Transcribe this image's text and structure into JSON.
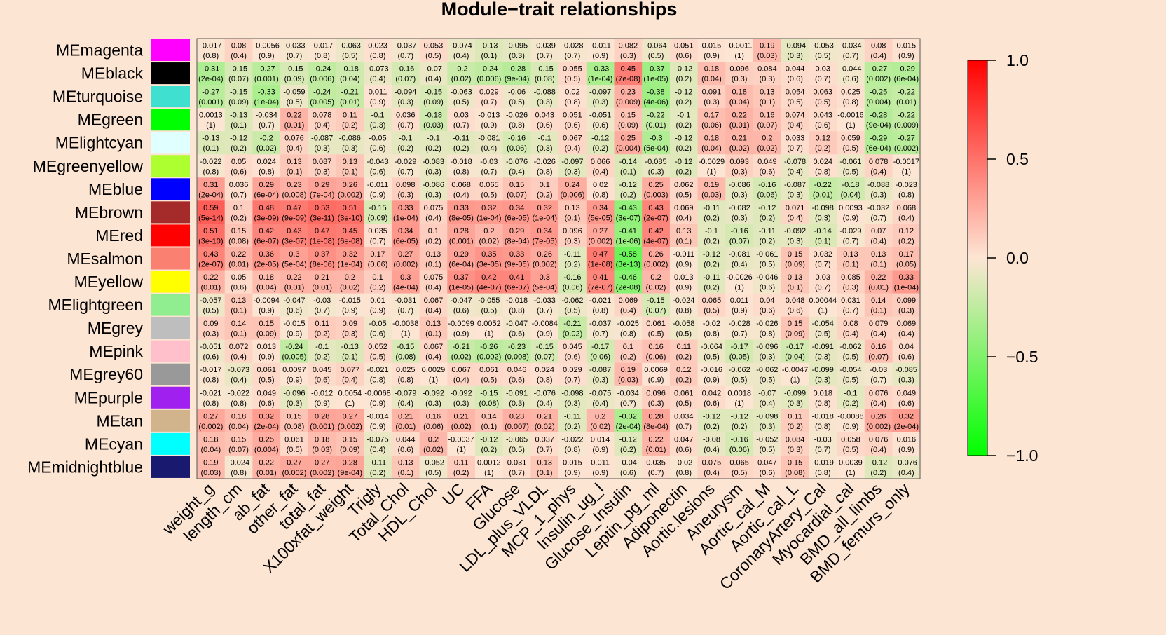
{
  "chart_data": {
    "type": "heatmap",
    "title": "Module−trait relationships",
    "rows": [
      "MEmagenta",
      "MEblack",
      "MEturquoise",
      "MEgreen",
      "MElightcyan",
      "MEgreenyellow",
      "MEblue",
      "MEbrown",
      "MEred",
      "MEsalmon",
      "MEyellow",
      "MElightgreen",
      "MEgrey",
      "MEpink",
      "MEgrey60",
      "MEpurple",
      "MEtan",
      "MEcyan",
      "MEmidnightblue"
    ],
    "row_colors": [
      "#ff00ff",
      "#000000",
      "#40e0d0",
      "#00ff00",
      "#e0ffff",
      "#adff2f",
      "#0000ff",
      "#a52a2a",
      "#ff0000",
      "#fa8072",
      "#ffff00",
      "#90ee90",
      "#bebebe",
      "#ffc0cb",
      "#999999",
      "#a020f0",
      "#d2b48c",
      "#00ffff",
      "#191970"
    ],
    "columns": [
      "weight_g",
      "length_cm",
      "ab_fat",
      "other_fat",
      "total_fat",
      "X100xfat_weight",
      "Trigly",
      "Total_Chol",
      "HDL_Chol",
      "UC",
      "FFA",
      "Glucose",
      "LDL_plus_VLDL",
      "MCP_1_phys",
      "Insulin_ug_l",
      "Glucose_Insulin",
      "Leptin_pg_ml",
      "Adiponectin",
      "Aortic.lesions",
      "Aneurysm",
      "Aortic_cal_M",
      "Aortic_cal_L",
      "CoronaryArtery_Cal",
      "Myocardial_cal",
      "BMD_all_limbs",
      "BMD_femurs_only"
    ],
    "correlations": [
      [
        "-0.017",
        "0.08",
        "-0.0056",
        "-0.033",
        "-0.017",
        "-0.063",
        "0.023",
        "-0.037",
        "0.053",
        "-0.074",
        "-0.13",
        "-0.095",
        "-0.039",
        "-0.028",
        "-0.011",
        "0.082",
        "-0.064",
        "0.051",
        "0.015",
        "-0.0011",
        "0.19",
        "-0.094",
        "-0.053",
        "-0.034",
        "0.08",
        "0.015"
      ],
      [
        "-0.31",
        "-0.15",
        "-0.27",
        "-0.15",
        "-0.24",
        "-0.18",
        "-0.073",
        "-0.16",
        "-0.07",
        "-0.2",
        "-0.24",
        "-0.28",
        "-0.15",
        "0.055",
        "-0.33",
        "0.45",
        "-0.37",
        "-0.12",
        "0.18",
        "0.096",
        "0.084",
        "0.044",
        "0.03",
        "-0.044",
        "-0.27",
        "-0.29"
      ],
      [
        "-0.27",
        "-0.15",
        "-0.33",
        "-0.059",
        "-0.24",
        "-0.21",
        "0.011",
        "-0.094",
        "-0.15",
        "-0.063",
        "0.029",
        "-0.06",
        "-0.088",
        "0.02",
        "-0.097",
        "0.23",
        "-0.38",
        "-0.12",
        "0.091",
        "0.18",
        "0.13",
        "0.054",
        "0.063",
        "0.025",
        "-0.25",
        "-0.22"
      ],
      [
        "0.0013",
        "-0.13",
        "-0.034",
        "0.22",
        "0.078",
        "0.11",
        "-0.1",
        "0.036",
        "-0.18",
        "0.03",
        "-0.013",
        "-0.026",
        "0.043",
        "0.051",
        "-0.051",
        "0.15",
        "-0.22",
        "-0.1",
        "0.17",
        "0.22",
        "0.16",
        "0.074",
        "0.043",
        "-0.0016",
        "-0.28",
        "-0.22"
      ],
      [
        "-0.13",
        "-0.12",
        "-0.2",
        "0.076",
        "-0.087",
        "-0.086",
        "-0.05",
        "-0.1",
        "-0.1",
        "-0.11",
        "-0.081",
        "-0.16",
        "-0.1",
        "0.067",
        "-0.12",
        "0.25",
        "-0.3",
        "-0.12",
        "0.18",
        "0.21",
        "0.2",
        "0.033",
        "0.12",
        "0.059",
        "-0.29",
        "-0.27"
      ],
      [
        "-0.022",
        "0.05",
        "0.024",
        "0.13",
        "0.087",
        "0.13",
        "-0.043",
        "-0.029",
        "-0.083",
        "-0.018",
        "-0.03",
        "-0.076",
        "-0.026",
        "-0.097",
        "0.066",
        "-0.14",
        "-0.085",
        "-0.12",
        "-0.0029",
        "0.093",
        "0.049",
        "-0.078",
        "0.024",
        "-0.061",
        "0.078",
        "-0.0017"
      ],
      [
        "0.31",
        "0.036",
        "0.29",
        "0.23",
        "0.29",
        "0.26",
        "-0.011",
        "0.098",
        "-0.086",
        "0.068",
        "0.065",
        "0.15",
        "0.1",
        "0.24",
        "0.02",
        "-0.12",
        "0.25",
        "0.062",
        "0.19",
        "-0.086",
        "-0.16",
        "-0.087",
        "-0.22",
        "-0.18",
        "-0.088",
        "-0.023"
      ],
      [
        "0.59",
        "0.1",
        "0.48",
        "0.47",
        "0.53",
        "0.51",
        "-0.15",
        "0.33",
        "0.075",
        "0.33",
        "0.32",
        "0.34",
        "0.32",
        "0.13",
        "0.34",
        "-0.43",
        "0.43",
        "0.069",
        "-0.11",
        "-0.082",
        "-0.12",
        "0.071",
        "-0.098",
        "0.0093",
        "-0.032",
        "0.068"
      ],
      [
        "0.51",
        "0.15",
        "0.42",
        "0.43",
        "0.47",
        "0.45",
        "0.035",
        "0.34",
        "0.1",
        "0.28",
        "0.2",
        "0.29",
        "0.34",
        "0.096",
        "0.27",
        "-0.41",
        "0.42",
        "0.13",
        "-0.1",
        "-0.16",
        "-0.11",
        "-0.092",
        "-0.14",
        "-0.029",
        "0.07",
        "0.12"
      ],
      [
        "0.43",
        "0.22",
        "0.36",
        "0.3",
        "0.37",
        "0.32",
        "0.17",
        "0.27",
        "0.13",
        "0.29",
        "0.35",
        "0.33",
        "0.26",
        "-0.11",
        "0.47",
        "-0.58",
        "0.26",
        "-0.011",
        "-0.12",
        "-0.081",
        "-0.061",
        "0.15",
        "0.032",
        "0.13",
        "0.13",
        "0.17"
      ],
      [
        "0.22",
        "0.05",
        "0.18",
        "0.22",
        "0.21",
        "0.2",
        "0.1",
        "0.3",
        "0.075",
        "0.37",
        "0.42",
        "0.41",
        "0.3",
        "-0.16",
        "0.41",
        "-0.46",
        "0.2",
        "0.013",
        "-0.11",
        "-0.0026",
        "-0.046",
        "0.13",
        "0.03",
        "0.085",
        "0.22",
        "0.33"
      ],
      [
        "-0.057",
        "0.13",
        "-0.0094",
        "-0.047",
        "-0.03",
        "-0.015",
        "0.01",
        "-0.031",
        "0.067",
        "-0.047",
        "-0.055",
        "-0.018",
        "-0.033",
        "-0.062",
        "-0.021",
        "0.069",
        "-0.15",
        "-0.024",
        "0.065",
        "0.011",
        "0.04",
        "0.048",
        "0.00044",
        "0.031",
        "0.14",
        "0.099"
      ],
      [
        "0.09",
        "0.14",
        "0.15",
        "-0.015",
        "0.11",
        "0.09",
        "-0.05",
        "-0.0038",
        "0.13",
        "-0.0099",
        "0.0052",
        "-0.047",
        "-0.0084",
        "-0.21",
        "-0.037",
        "-0.025",
        "0.061",
        "-0.058",
        "-0.02",
        "-0.028",
        "-0.026",
        "0.15",
        "-0.054",
        "0.08",
        "0.079",
        "0.069"
      ],
      [
        "-0.051",
        "0.072",
        "0.013",
        "-0.24",
        "-0.1",
        "-0.13",
        "0.052",
        "-0.15",
        "0.067",
        "-0.21",
        "-0.26",
        "-0.23",
        "-0.15",
        "0.045",
        "-0.17",
        "0.1",
        "0.16",
        "0.11",
        "-0.064",
        "-0.17",
        "-0.096",
        "-0.17",
        "-0.091",
        "-0.062",
        "0.16",
        "0.04"
      ],
      [
        "-0.017",
        "-0.073",
        "0.061",
        "0.0097",
        "0.045",
        "0.077",
        "-0.021",
        "0.025",
        "0.0029",
        "0.067",
        "0.061",
        "0.046",
        "0.024",
        "0.029",
        "-0.087",
        "0.19",
        "0.0069",
        "0.12",
        "-0.016",
        "-0.062",
        "-0.062",
        "-0.0047",
        "-0.099",
        "-0.054",
        "-0.03",
        "-0.085"
      ],
      [
        "-0.021",
        "-0.022",
        "0.049",
        "-0.096",
        "-0.012",
        "0.0054",
        "-0.0068",
        "-0.079",
        "-0.092",
        "-0.092",
        "-0.15",
        "-0.091",
        "-0.076",
        "-0.098",
        "-0.075",
        "-0.034",
        "0.096",
        "0.061",
        "0.042",
        "0.0018",
        "-0.07",
        "-0.099",
        "0.018",
        "-0.1",
        "0.076",
        "0.049"
      ],
      [
        "0.27",
        "0.18",
        "0.32",
        "0.15",
        "0.28",
        "0.27",
        "-0.014",
        "0.21",
        "0.16",
        "0.21",
        "0.14",
        "0.23",
        "0.21",
        "-0.11",
        "0.2",
        "-0.32",
        "0.28",
        "0.034",
        "-0.12",
        "-0.12",
        "-0.098",
        "0.11",
        "-0.018",
        "-0.0088",
        "0.26",
        "0.32"
      ],
      [
        "0.18",
        "0.15",
        "0.25",
        "0.061",
        "0.18",
        "0.15",
        "-0.075",
        "0.044",
        "0.2",
        "-0.0037",
        "-0.12",
        "-0.065",
        "0.037",
        "-0.022",
        "0.014",
        "-0.12",
        "0.22",
        "0.047",
        "-0.08",
        "-0.16",
        "-0.052",
        "0.084",
        "-0.03",
        "0.058",
        "0.076",
        "0.016"
      ],
      [
        "0.19",
        "-0.024",
        "0.22",
        "0.27",
        "0.27",
        "0.28",
        "-0.11",
        "0.13",
        "-0.052",
        "0.11",
        "0.0012",
        "0.031",
        "0.13",
        "0.015",
        "0.011",
        "-0.04",
        "0.035",
        "-0.02",
        "0.075",
        "0.065",
        "0.047",
        "0.15",
        "-0.019",
        "0.0039",
        "-0.12",
        "-0.076"
      ]
    ],
    "pvalues": [
      [
        "(0.8)",
        "(0.4)",
        "(0.9)",
        "(0.7)",
        "(0.8)",
        "(0.5)",
        "(0.8)",
        "(0.7)",
        "(0.5)",
        "(0.4)",
        "(0.1)",
        "(0.3)",
        "(0.7)",
        "(0.7)",
        "(0.9)",
        "(0.3)",
        "(0.5)",
        "(0.6)",
        "(0.9)",
        "(1)",
        "(0.03)",
        "(0.3)",
        "(0.5)",
        "(0.7)",
        "(0.4)",
        "(0.9)"
      ],
      [
        "(2e-04)",
        "(0.07)",
        "(0.001)",
        "(0.09)",
        "(0.006)",
        "(0.04)",
        "(0.4)",
        "(0.07)",
        "(0.4)",
        "(0.02)",
        "(0.006)",
        "(9e-04)",
        "(0.08)",
        "(0.5)",
        "(1e-04)",
        "(7e-08)",
        "(1e-05)",
        "(0.2)",
        "(0.04)",
        "(0.3)",
        "(0.3)",
        "(0.6)",
        "(0.7)",
        "(0.6)",
        "(0.002)",
        "(6e-04)"
      ],
      [
        "(0.001)",
        "(0.09)",
        "(1e-04)",
        "(0.5)",
        "(0.005)",
        "(0.01)",
        "(0.9)",
        "(0.3)",
        "(0.09)",
        "(0.5)",
        "(0.7)",
        "(0.5)",
        "(0.3)",
        "(0.8)",
        "(0.3)",
        "(0.009)",
        "(4e-06)",
        "(0.2)",
        "(0.3)",
        "(0.04)",
        "(0.1)",
        "(0.5)",
        "(0.5)",
        "(0.8)",
        "(0.004)",
        "(0.01)"
      ],
      [
        "(1)",
        "(0.1)",
        "(0.7)",
        "(0.01)",
        "(0.4)",
        "(0.2)",
        "(0.3)",
        "(0.7)",
        "(0.03)",
        "(0.7)",
        "(0.9)",
        "(0.8)",
        "(0.6)",
        "(0.6)",
        "(0.6)",
        "(0.09)",
        "(0.01)",
        "(0.2)",
        "(0.06)",
        "(0.01)",
        "(0.07)",
        "(0.4)",
        "(0.6)",
        "(1)",
        "(9e-04)",
        "(0.009)"
      ],
      [
        "(0.1)",
        "(0.2)",
        "(0.02)",
        "(0.4)",
        "(0.3)",
        "(0.3)",
        "(0.6)",
        "(0.2)",
        "(0.2)",
        "(0.2)",
        "(0.4)",
        "(0.06)",
        "(0.3)",
        "(0.4)",
        "(0.2)",
        "(0.004)",
        "(5e-04)",
        "(0.2)",
        "(0.04)",
        "(0.02)",
        "(0.02)",
        "(0.7)",
        "(0.2)",
        "(0.5)",
        "(6e-04)",
        "(0.002)"
      ],
      [
        "(0.8)",
        "(0.6)",
        "(0.8)",
        "(0.1)",
        "(0.3)",
        "(0.1)",
        "(0.6)",
        "(0.7)",
        "(0.3)",
        "(0.8)",
        "(0.7)",
        "(0.4)",
        "(0.8)",
        "(0.3)",
        "(0.4)",
        "(0.1)",
        "(0.3)",
        "(0.2)",
        "(1)",
        "(0.3)",
        "(0.6)",
        "(0.4)",
        "(0.8)",
        "(0.5)",
        "(0.4)",
        "(1)"
      ],
      [
        "(2e-04)",
        "(0.7)",
        "(6e-04)",
        "(0.008)",
        "(7e-04)",
        "(0.002)",
        "(0.9)",
        "(0.3)",
        "(0.3)",
        "(0.4)",
        "(0.5)",
        "(0.07)",
        "(0.2)",
        "(0.006)",
        "(0.8)",
        "(0.2)",
        "(0.003)",
        "(0.5)",
        "(0.03)",
        "(0.3)",
        "(0.06)",
        "(0.3)",
        "(0.01)",
        "(0.04)",
        "(0.3)",
        "(0.8)"
      ],
      [
        "(5e-14)",
        "(0.2)",
        "(3e-09)",
        "(9e-09)",
        "(3e-11)",
        "(3e-10)",
        "(0.09)",
        "(1e-04)",
        "(0.4)",
        "(8e-05)",
        "(1e-04)",
        "(6e-05)",
        "(1e-04)",
        "(0.1)",
        "(5e-05)",
        "(3e-07)",
        "(2e-07)",
        "(0.4)",
        "(0.2)",
        "(0.3)",
        "(0.2)",
        "(0.4)",
        "(0.3)",
        "(0.9)",
        "(0.7)",
        "(0.4)"
      ],
      [
        "(3e-10)",
        "(0.08)",
        "(6e-07)",
        "(3e-07)",
        "(1e-08)",
        "(6e-08)",
        "(0.7)",
        "(6e-05)",
        "(0.2)",
        "(0.001)",
        "(0.02)",
        "(8e-04)",
        "(7e-05)",
        "(0.3)",
        "(0.002)",
        "(1e-06)",
        "(4e-07)",
        "(0.1)",
        "(0.2)",
        "(0.07)",
        "(0.2)",
        "(0.3)",
        "(0.1)",
        "(0.7)",
        "(0.4)",
        "(0.2)"
      ],
      [
        "(2e-07)",
        "(0.01)",
        "(2e-05)",
        "(5e-04)",
        "(8e-06)",
        "(1e-04)",
        "(0.06)",
        "(0.002)",
        "(0.1)",
        "(6e-04)",
        "(3e-05)",
        "(9e-05)",
        "(0.002)",
        "(0.2)",
        "(1e-08)",
        "(3e-13)",
        "(0.002)",
        "(0.9)",
        "(0.2)",
        "(0.4)",
        "(0.5)",
        "(0.09)",
        "(0.7)",
        "(0.1)",
        "(0.1)",
        "(0.05)"
      ],
      [
        "(0.01)",
        "(0.6)",
        "(0.04)",
        "(0.01)",
        "(0.01)",
        "(0.02)",
        "(0.2)",
        "(4e-04)",
        "(0.4)",
        "(1e-05)",
        "(4e-07)",
        "(6e-07)",
        "(5e-04)",
        "(0.06)",
        "(7e-07)",
        "(2e-08)",
        "(0.02)",
        "(0.9)",
        "(0.2)",
        "(1)",
        "(0.6)",
        "(0.1)",
        "(0.7)",
        "(0.3)",
        "(0.01)",
        "(1e-04)"
      ],
      [
        "(0.5)",
        "(0.1)",
        "(0.9)",
        "(0.6)",
        "(0.7)",
        "(0.9)",
        "(0.9)",
        "(0.7)",
        "(0.4)",
        "(0.6)",
        "(0.5)",
        "(0.8)",
        "(0.7)",
        "(0.5)",
        "(0.8)",
        "(0.4)",
        "(0.07)",
        "(0.8)",
        "(0.5)",
        "(0.9)",
        "(0.6)",
        "(0.6)",
        "(1)",
        "(0.7)",
        "(0.1)",
        "(0.3)"
      ],
      [
        "(0.3)",
        "(0.1)",
        "(0.09)",
        "(0.9)",
        "(0.2)",
        "(0.3)",
        "(0.6)",
        "(1)",
        "(0.1)",
        "(0.9)",
        "(1)",
        "(0.6)",
        "(0.9)",
        "(0.02)",
        "(0.7)",
        "(0.8)",
        "(0.5)",
        "(0.5)",
        "(0.8)",
        "(0.7)",
        "(0.8)",
        "(0.09)",
        "(0.5)",
        "(0.4)",
        "(0.4)",
        "(0.4)"
      ],
      [
        "(0.6)",
        "(0.4)",
        "(0.9)",
        "(0.005)",
        "(0.2)",
        "(0.1)",
        "(0.5)",
        "(0.08)",
        "(0.4)",
        "(0.02)",
        "(0.002)",
        "(0.008)",
        "(0.07)",
        "(0.6)",
        "(0.06)",
        "(0.2)",
        "(0.06)",
        "(0.2)",
        "(0.5)",
        "(0.05)",
        "(0.3)",
        "(0.04)",
        "(0.3)",
        "(0.5)",
        "(0.07)",
        "(0.6)"
      ],
      [
        "(0.8)",
        "(0.4)",
        "(0.5)",
        "(0.9)",
        "(0.6)",
        "(0.4)",
        "(0.8)",
        "(0.8)",
        "(1)",
        "(0.4)",
        "(0.5)",
        "(0.6)",
        "(0.8)",
        "(0.7)",
        "(0.3)",
        "(0.03)",
        "(0.9)",
        "(0.2)",
        "(0.9)",
        "(0.5)",
        "(0.5)",
        "(1)",
        "(0.3)",
        "(0.5)",
        "(0.7)",
        "(0.3)"
      ],
      [
        "(0.8)",
        "(0.8)",
        "(0.6)",
        "(0.3)",
        "(0.9)",
        "(1)",
        "(0.9)",
        "(0.4)",
        "(0.3)",
        "(0.3)",
        "(0.08)",
        "(0.3)",
        "(0.4)",
        "(0.3)",
        "(0.4)",
        "(0.7)",
        "(0.3)",
        "(0.5)",
        "(0.6)",
        "(1)",
        "(0.4)",
        "(0.3)",
        "(0.8)",
        "(0.2)",
        "(0.4)",
        "(0.6)"
      ],
      [
        "(0.002)",
        "(0.04)",
        "(2e-04)",
        "(0.08)",
        "(0.001)",
        "(0.002)",
        "(0.9)",
        "(0.01)",
        "(0.06)",
        "(0.02)",
        "(0.1)",
        "(0.007)",
        "(0.02)",
        "(0.2)",
        "(0.02)",
        "(2e-04)",
        "(8e-04)",
        "(0.7)",
        "(0.2)",
        "(0.2)",
        "(0.3)",
        "(0.2)",
        "(0.8)",
        "(0.9)",
        "(0.002)",
        "(2e-04)"
      ],
      [
        "(0.04)",
        "(0.07)",
        "(0.004)",
        "(0.5)",
        "(0.03)",
        "(0.09)",
        "(0.4)",
        "(0.6)",
        "(0.02)",
        "(1)",
        "(0.2)",
        "(0.5)",
        "(0.7)",
        "(0.8)",
        "(0.9)",
        "(0.2)",
        "(0.01)",
        "(0.6)",
        "(0.4)",
        "(0.06)",
        "(0.5)",
        "(0.3)",
        "(0.7)",
        "(0.5)",
        "(0.4)",
        "(0.9)"
      ],
      [
        "(0.03)",
        "(0.8)",
        "(0.01)",
        "(0.002)",
        "(0.002)",
        "(9e-04)",
        "(0.2)",
        "(0.1)",
        "(0.5)",
        "(0.2)",
        "(1)",
        "(0.7)",
        "(0.1)",
        "(0.9)",
        "(0.9)",
        "(0.6)",
        "(0.7)",
        "(0.8)",
        "(0.4)",
        "(0.5)",
        "(0.6)",
        "(0.08)",
        "(0.8)",
        "(1)",
        "(0.2)",
        "(0.4)"
      ]
    ],
    "colorbar": {
      "range": [
        -1,
        1
      ],
      "ticks": [
        "1.0",
        "0.5",
        "0.0",
        "−0.5",
        "−1.0"
      ],
      "low_color": "#00ff00",
      "mid_color": "#fde5d4",
      "high_color": "#ff0000"
    },
    "background_color": "#fde5d4"
  }
}
